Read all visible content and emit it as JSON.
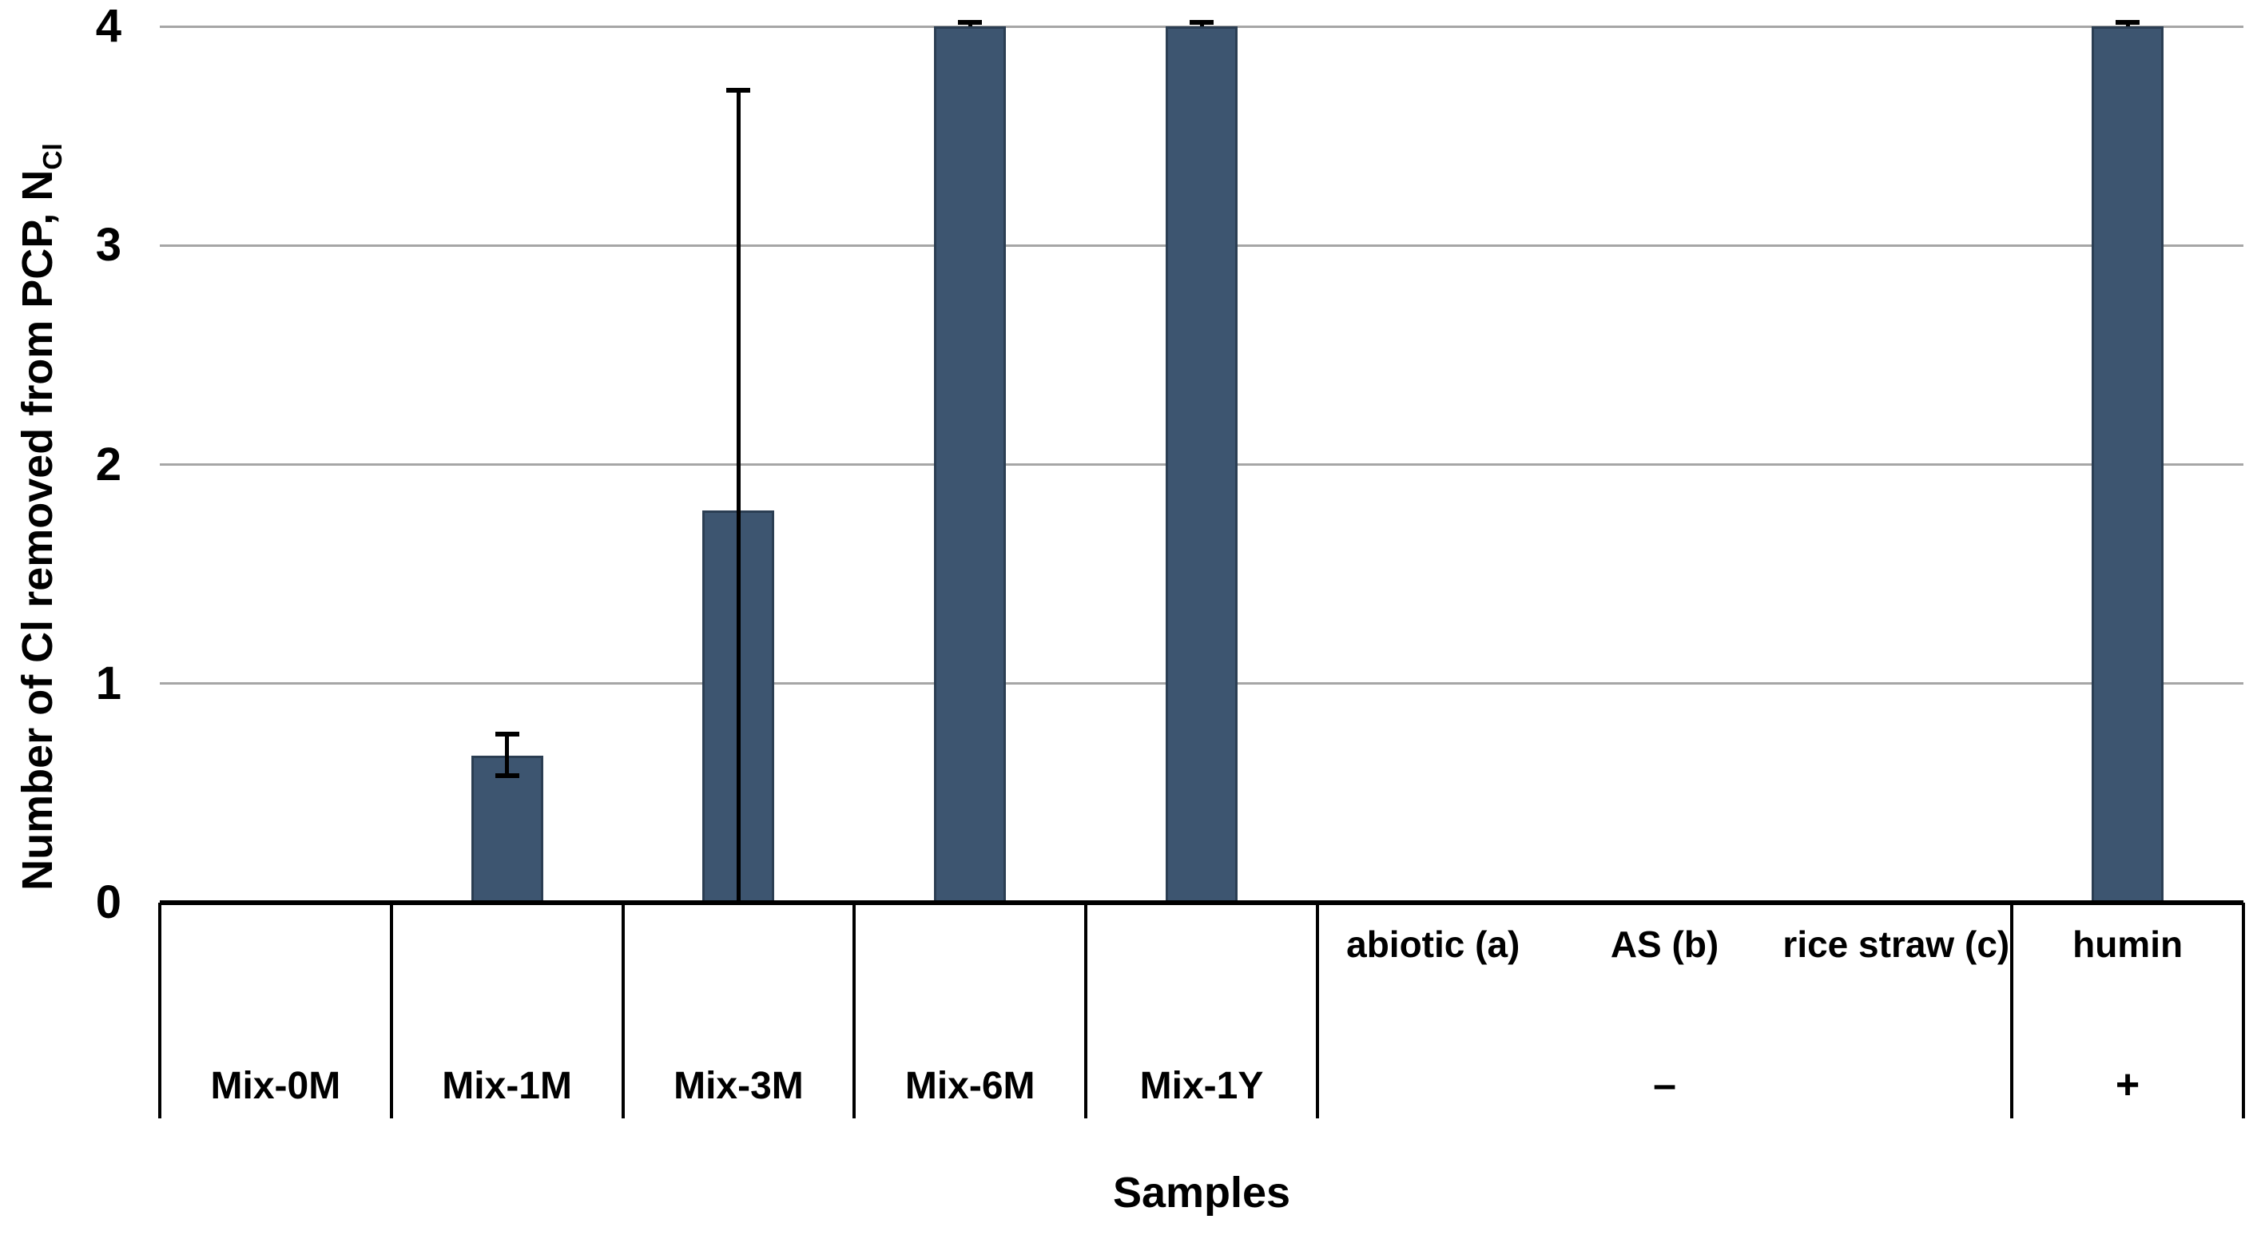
{
  "chart_data": {
    "type": "bar",
    "title": "",
    "xlabel": "Samples",
    "ylabel": "Number of Cl removed from PCP, N_Cl",
    "ylabel_main": "Number of Cl removed from PCP, N",
    "ylabel_subscript": "Cl",
    "ylim": [
      0,
      4
    ],
    "ytick_labels": [
      "0",
      "1",
      "2",
      "3",
      "4"
    ],
    "grid": true,
    "legend_position": "none",
    "categories": [
      "Mix-0M",
      "Mix-1M",
      "Mix-3M",
      "Mix-6M",
      "Mix-1Y",
      "abiotic (a)",
      "AS (b)",
      "rice straw (c)",
      "humin"
    ],
    "values": [
      0,
      0.67,
      1.79,
      4,
      4,
      0,
      0,
      0,
      4
    ],
    "error_bars": [
      null,
      {
        "plus": 0.1,
        "minus": 0.09,
        "cap_top": true,
        "cap_bottom": true
      },
      {
        "plus": 1.92,
        "minus": 1.79,
        "cap_top": true,
        "cap_bottom": false
      },
      {
        "plus": 0.02,
        "minus": 0,
        "cap_top": true,
        "cap_bottom": false
      },
      {
        "plus": 0.02,
        "minus": 0,
        "cap_top": true,
        "cap_bottom": false
      },
      null,
      null,
      null,
      {
        "plus": 0.02,
        "minus": 0,
        "cap_top": true,
        "cap_bottom": false
      }
    ],
    "colors": {
      "bar_fill": "#3d5570",
      "bar_border": "#2b3e53",
      "gridline": "#a6a6a6",
      "axis": "#000000",
      "text": "#000000",
      "background": "#ffffff"
    }
  },
  "x_axis_table": {
    "mix_labels": [
      "Mix-0M",
      "Mix-1M",
      "Mix-3M",
      "Mix-6M",
      "Mix-1Y"
    ],
    "upper_labels": [
      "abiotic (a)",
      "AS (b)",
      "rice straw (c)",
      "humin"
    ],
    "minus_sign": "–",
    "plus_sign": "+"
  }
}
